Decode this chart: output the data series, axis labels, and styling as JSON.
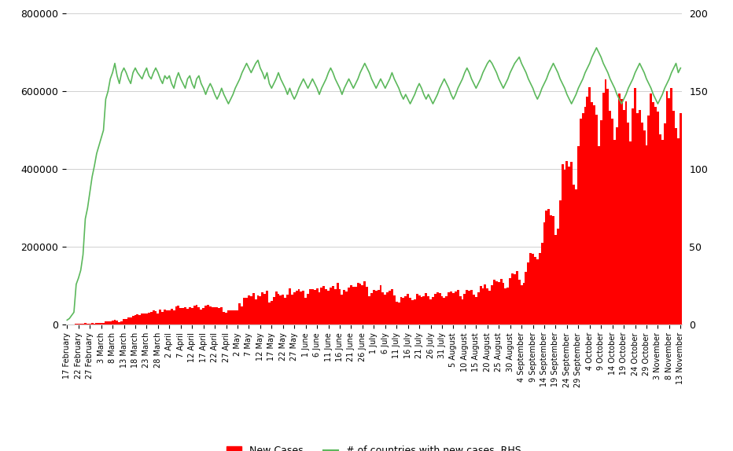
{
  "bar_color": "#ff0000",
  "line_color": "#5cb85c",
  "background_color": "#ffffff",
  "ylim_left": [
    0,
    800000
  ],
  "ylim_right": [
    0,
    200
  ],
  "yticks_left": [
    0,
    200000,
    400000,
    600000,
    800000
  ],
  "yticks_right": [
    0,
    50,
    100,
    150,
    200
  ],
  "legend_labels": [
    "New Cases",
    "# of countries with new cases, RHS"
  ],
  "x_labels": [
    "17 February",
    "22 February",
    "27 February",
    "3 March",
    "8 March",
    "13 March",
    "18 March",
    "23 March",
    "28 March",
    "2 April",
    "7 April",
    "12 April",
    "17 April",
    "22 April",
    "27 April",
    "2 May",
    "7 May",
    "12 May",
    "17 May",
    "22 May",
    "27 May",
    "1 June",
    "6 June",
    "11 June",
    "16 June",
    "21 June",
    "26 June",
    "1 July",
    "6 July",
    "11 July",
    "16 July",
    "21 July",
    "26 July",
    "31 July",
    "5 August",
    "10 August",
    "15 August",
    "20 August",
    "25 August",
    "30 August",
    "4 September",
    "9 September",
    "14 September",
    "19 September",
    "24 September",
    "29 September",
    "4 October",
    "9 October",
    "14 October",
    "19 October",
    "24 October",
    "29 October",
    "3 November",
    "8 November",
    "13 November"
  ],
  "x_label_indices": [
    0,
    5,
    10,
    15,
    20,
    25,
    30,
    35,
    40,
    45,
    50,
    55,
    60,
    65,
    70,
    75,
    80,
    85,
    90,
    95,
    100,
    105,
    110,
    115,
    120,
    125,
    130,
    135,
    140,
    145,
    150,
    155,
    160,
    165,
    170,
    175,
    180,
    185,
    190,
    195,
    200,
    205,
    210,
    215,
    220,
    225,
    230,
    235,
    240,
    245,
    250,
    255,
    260,
    265,
    270
  ],
  "new_cases": [
    394,
    406,
    259,
    444,
    2015,
    2078,
    1770,
    1598,
    3697,
    2986,
    3563,
    3694,
    3255,
    3996,
    3826,
    4189,
    4566,
    7787,
    7782,
    9121,
    11321,
    11952,
    11187,
    7188,
    7764,
    14627,
    14467,
    18615,
    18888,
    23723,
    24345,
    26177,
    24811,
    28416,
    29747,
    28774,
    30105,
    33819,
    36818,
    35822,
    28561,
    38490,
    31881,
    38406,
    37258,
    37826,
    40982,
    37083,
    46408,
    49398,
    42166,
    42162,
    45367,
    41511,
    44979,
    43798,
    49783,
    51649,
    45699,
    39768,
    42776,
    48399,
    52015,
    47024,
    44068,
    45685,
    44111,
    42888,
    44416,
    31890,
    31296,
    36022,
    35920,
    36925,
    37576,
    37099,
    55782,
    46396,
    68684,
    69760,
    75509,
    73787,
    80672,
    64438,
    74835,
    74095,
    82736,
    80031,
    87302,
    56530,
    61987,
    71155,
    84583,
    79021,
    76060,
    76451,
    68444,
    77303,
    93573,
    76588,
    83238,
    88006,
    90823,
    85066,
    86416,
    69434,
    79825,
    90553,
    91800,
    90163,
    94225,
    84068,
    95519,
    99567,
    91416,
    87018,
    95975,
    99684,
    90945,
    108448,
    90717,
    78024,
    89513,
    85010,
    95862,
    101905,
    97905,
    97267,
    108108,
    105988,
    102439,
    111042,
    97846,
    72783,
    80474,
    89439,
    87614,
    90399,
    101434,
    82949,
    77638,
    82700,
    87513,
    90456,
    75612,
    59990,
    56762,
    71996,
    69351,
    73095,
    78340,
    68965,
    63264,
    65745,
    78553,
    74428,
    71590,
    73218,
    81963,
    72862,
    64714,
    71665,
    79219,
    82867,
    80411,
    73012,
    69612,
    74026,
    82680,
    86244,
    81408,
    85862,
    88590,
    73840,
    66176,
    80025,
    90247,
    87108,
    89649,
    77547,
    71642,
    83698,
    98988,
    93357,
    104059,
    93690,
    87278,
    101060,
    115149,
    112540,
    108765,
    118595,
    107201,
    93742,
    95716,
    119029,
    131099,
    130600,
    137280,
    115800,
    101598,
    108518,
    135900,
    160996,
    185300,
    181930,
    174527,
    167890,
    185000,
    210000,
    263000,
    294000,
    298000,
    282000,
    280000,
    230000,
    246000,
    320000,
    413000,
    399000,
    421000,
    407000,
    418000,
    360000,
    348000,
    459000,
    529000,
    544000,
    560000,
    586000,
    611000,
    572000,
    564000,
    540000,
    460000,
    525000,
    596000,
    630000,
    607000,
    550000,
    530000,
    476000,
    507000,
    594000,
    580000,
    551000,
    574000,
    520000,
    472000,
    557000,
    608000,
    543000,
    553000,
    520000,
    500000,
    462000,
    537000,
    595000,
    573000,
    561000,
    547000,
    490000,
    476000,
    518000,
    600000,
    583000,
    609000,
    549000,
    505000,
    479000,
    544000
  ],
  "countries_line": [
    3,
    4,
    6,
    8,
    26,
    30,
    35,
    45,
    68,
    75,
    85,
    95,
    102,
    110,
    115,
    120,
    125,
    145,
    150,
    158,
    162,
    168,
    160,
    155,
    162,
    165,
    162,
    158,
    155,
    162,
    165,
    162,
    160,
    158,
    162,
    165,
    160,
    158,
    162,
    165,
    162,
    158,
    155,
    160,
    158,
    160,
    155,
    152,
    158,
    162,
    158,
    155,
    152,
    158,
    160,
    155,
    152,
    158,
    160,
    155,
    152,
    148,
    152,
    155,
    152,
    148,
    145,
    148,
    152,
    148,
    145,
    142,
    145,
    148,
    152,
    155,
    158,
    162,
    165,
    168,
    165,
    162,
    165,
    168,
    170,
    165,
    162,
    158,
    162,
    155,
    152,
    155,
    158,
    162,
    158,
    155,
    152,
    148,
    152,
    148,
    145,
    148,
    152,
    155,
    158,
    155,
    152,
    155,
    158,
    155,
    152,
    148,
    152,
    155,
    158,
    162,
    165,
    162,
    158,
    155,
    152,
    148,
    152,
    155,
    158,
    155,
    152,
    155,
    158,
    162,
    165,
    168,
    165,
    162,
    158,
    155,
    152,
    155,
    158,
    155,
    152,
    155,
    158,
    162,
    158,
    155,
    152,
    148,
    145,
    148,
    145,
    142,
    145,
    148,
    152,
    155,
    152,
    148,
    145,
    148,
    145,
    142,
    145,
    148,
    152,
    155,
    158,
    155,
    152,
    148,
    145,
    148,
    152,
    155,
    158,
    162,
    165,
    162,
    158,
    155,
    152,
    155,
    158,
    162,
    165,
    168,
    170,
    168,
    165,
    162,
    158,
    155,
    152,
    155,
    158,
    162,
    165,
    168,
    170,
    172,
    168,
    165,
    162,
    158,
    155,
    152,
    148,
    145,
    148,
    152,
    155,
    158,
    162,
    165,
    168,
    165,
    162,
    158,
    155,
    152,
    148,
    145,
    142,
    145,
    148,
    152,
    155,
    158,
    162,
    165,
    168,
    172,
    175,
    178,
    175,
    172,
    168,
    165,
    162,
    158,
    155,
    152,
    148,
    145,
    142,
    145,
    148,
    152,
    155,
    158,
    162,
    165,
    168,
    165,
    162,
    158,
    155,
    152,
    148,
    145,
    142,
    145,
    148,
    152,
    155,
    158,
    162,
    165,
    168,
    162,
    165
  ]
}
